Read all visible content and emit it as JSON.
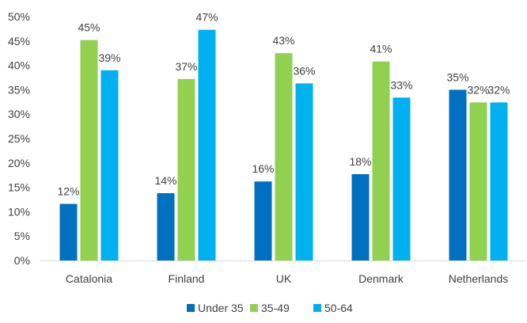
{
  "chart_data": {
    "type": "bar",
    "categories": [
      "Catalonia",
      "Finland",
      "UK",
      "Denmark",
      "Netherlands"
    ],
    "series": [
      {
        "name": "Under 35",
        "color": "#0070C0",
        "values": [
          12,
          14,
          16,
          18,
          35
        ]
      },
      {
        "name": "35-49",
        "color": "#92D050",
        "values": [
          45,
          37,
          43,
          41,
          32
        ]
      },
      {
        "name": "50-64",
        "color": "#00B0F0",
        "values": [
          39,
          47,
          36,
          33,
          32
        ]
      }
    ],
    "plotted_values": [
      [
        11.6,
        13.8,
        16.2,
        17.7,
        35.0
      ],
      [
        45.2,
        37.2,
        42.5,
        40.8,
        32.4
      ],
      [
        39.0,
        47.3,
        36.3,
        33.4,
        32.4
      ]
    ],
    "ylim": [
      0,
      50
    ],
    "yticks": [
      "0%",
      "5%",
      "10%",
      "15%",
      "20%",
      "25%",
      "30%",
      "35%",
      "40%",
      "45%",
      "50%"
    ],
    "value_suffix": "%",
    "grid": false,
    "legend_position": "bottom",
    "title": "",
    "xlabel": "",
    "ylabel": ""
  }
}
